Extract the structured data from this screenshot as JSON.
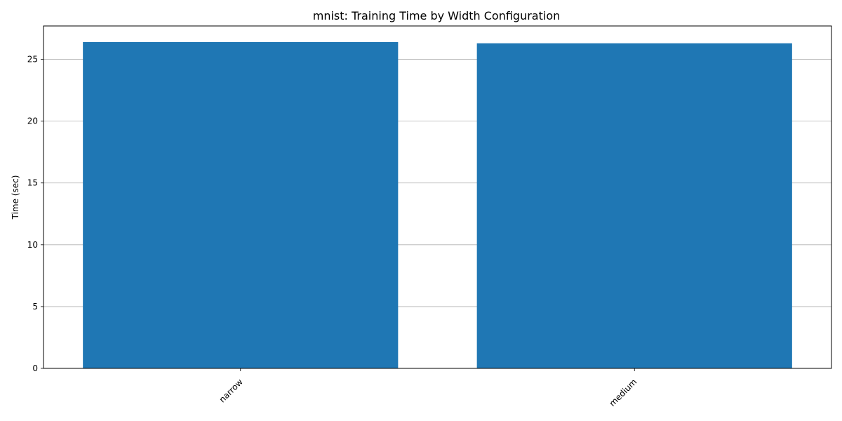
{
  "chart_data": {
    "type": "bar",
    "title": "mnist: Training Time by Width Configuration",
    "xlabel": "",
    "ylabel": "Time (sec)",
    "categories": [
      "narrow",
      "medium"
    ],
    "values": [
      26.4,
      26.3
    ],
    "ylim": [
      0,
      27.7
    ],
    "yticks": [
      0,
      5,
      10,
      15,
      20,
      25
    ],
    "grid": "y",
    "bar_color": "#1f77b4",
    "grid_color": "#b0b0b0",
    "xtick_rotation_deg": 45
  }
}
